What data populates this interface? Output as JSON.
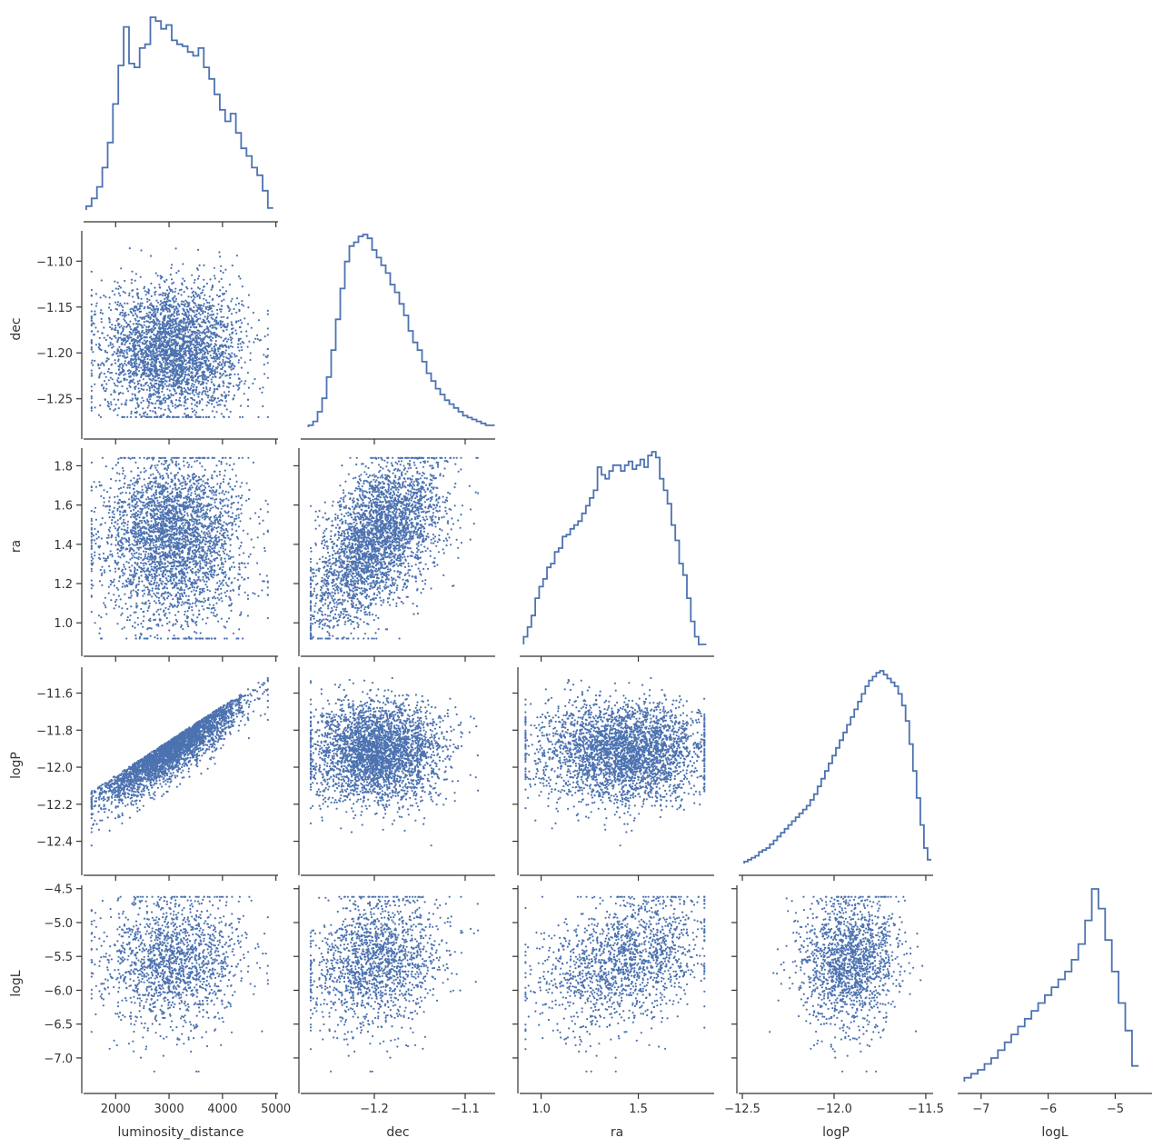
{
  "chart_data": {
    "type": "pairplot",
    "variables": [
      {
        "key": "luminosity_distance",
        "label": "luminosity_distance",
        "range": [
          1400,
          5040
        ],
        "ticks": [
          2000,
          3000,
          4000,
          5000
        ],
        "tick_labels": [
          "2000",
          "3000",
          "4000",
          "5000"
        ]
      },
      {
        "key": "dec",
        "label": "dec",
        "range": [
          -1.281,
          -1.067
        ],
        "ticks": [
          -1.25,
          -1.2,
          -1.15,
          -1.1
        ],
        "tick_labels": [
          "−1.25",
          "−1.20",
          "−1.15",
          "−1.10"
        ],
        "x_ticks": [
          -1.2,
          -1.1
        ],
        "x_tick_labels": [
          "−1.2",
          "−1.1"
        ]
      },
      {
        "key": "ra",
        "label": "ra",
        "range": [
          0.89,
          1.89
        ],
        "ticks": [
          1.0,
          1.2,
          1.4,
          1.6,
          1.8
        ],
        "tick_labels": [
          "1.0",
          "1.2",
          "1.4",
          "1.6",
          "1.8"
        ],
        "x_ticks": [
          1.0,
          1.5
        ],
        "x_tick_labels": [
          "1.0",
          "1.5"
        ]
      },
      {
        "key": "logP",
        "label": "logP",
        "range": [
          -12.52,
          -11.46
        ],
        "ticks": [
          -12.4,
          -12.2,
          -12.0,
          -11.8,
          -11.6
        ],
        "tick_labels": [
          "−12.4",
          "−12.2",
          "−12.0",
          "−11.8",
          "−11.6"
        ],
        "x_ticks": [
          -12.5,
          -12.0,
          -11.5
        ],
        "x_tick_labels": [
          "−12.5",
          "−12.0",
          "−11.5"
        ]
      },
      {
        "key": "logL",
        "label": "logL",
        "range": [
          -7.35,
          -4.45
        ],
        "ticks": [
          -7.0,
          -6.5,
          -6.0,
          -5.5,
          -5.0,
          -4.5
        ],
        "tick_labels": [
          "−7.0",
          "−6.5",
          "−6.0",
          "−5.5",
          "−5.0",
          "−4.5"
        ],
        "x_ticks": [
          -7,
          -6,
          -5
        ],
        "x_tick_labels": [
          "−7",
          "−6",
          "−5"
        ]
      }
    ],
    "marginals": {
      "luminosity_distance": {
        "x": [
          1500,
          1600,
          1700,
          1800,
          1900,
          2000,
          2100,
          2200,
          2300,
          2400,
          2500,
          2600,
          2700,
          2800,
          2900,
          3000,
          3100,
          3200,
          3300,
          3400,
          3500,
          3600,
          3700,
          3800,
          3900,
          4000,
          4100,
          4200,
          4300,
          4400,
          4500,
          4600,
          4700,
          4800,
          4900
        ],
        "density": [
          2,
          6,
          12,
          22,
          35,
          55,
          75,
          95,
          76,
          74,
          84,
          86,
          100,
          98,
          94,
          96,
          88,
          86,
          85,
          82,
          80,
          84,
          74,
          68,
          60,
          52,
          46,
          50,
          40,
          32,
          28,
          22,
          18,
          10,
          1
        ]
      },
      "dec": {
        "x": [
          -1.27,
          -1.265,
          -1.26,
          -1.255,
          -1.25,
          -1.245,
          -1.24,
          -1.235,
          -1.23,
          -1.225,
          -1.22,
          -1.215,
          -1.21,
          -1.205,
          -1.2,
          -1.195,
          -1.19,
          -1.185,
          -1.18,
          -1.175,
          -1.17,
          -1.165,
          -1.16,
          -1.155,
          -1.15,
          -1.145,
          -1.14,
          -1.135,
          -1.13,
          -1.125,
          -1.12,
          -1.115,
          -1.11,
          -1.105,
          -1.1,
          -1.095,
          -1.09,
          -1.085,
          -1.08,
          -1.075,
          -1.07
        ],
        "density": [
          1,
          3,
          8,
          15,
          26,
          40,
          56,
          72,
          86,
          94,
          96,
          99,
          100,
          98,
          92,
          88,
          84,
          80,
          74,
          70,
          64,
          58,
          50,
          44,
          40,
          34,
          28,
          24,
          20,
          17,
          14,
          12,
          10,
          8,
          6,
          5,
          4,
          3,
          2,
          1,
          1
        ]
      },
      "ra": {
        "x": [
          0.92,
          0.94,
          0.96,
          0.98,
          1.0,
          1.02,
          1.04,
          1.06,
          1.08,
          1.1,
          1.12,
          1.14,
          1.16,
          1.18,
          1.2,
          1.22,
          1.24,
          1.26,
          1.28,
          1.3,
          1.32,
          1.34,
          1.36,
          1.38,
          1.4,
          1.42,
          1.44,
          1.46,
          1.48,
          1.5,
          1.52,
          1.54,
          1.56,
          1.58,
          1.6,
          1.62,
          1.64,
          1.66,
          1.68,
          1.7,
          1.72,
          1.74,
          1.76,
          1.78,
          1.8,
          1.82,
          1.84
        ],
        "density": [
          4,
          9,
          15,
          24,
          30,
          34,
          40,
          42,
          48,
          50,
          56,
          57,
          60,
          62,
          64,
          68,
          72,
          76,
          80,
          92,
          88,
          86,
          90,
          93,
          93,
          90,
          93,
          95,
          91,
          93,
          96,
          92,
          98,
          100,
          97,
          86,
          80,
          73,
          62,
          54,
          42,
          36,
          24,
          12,
          4,
          0,
          0
        ]
      },
      "logP": {
        "x": [
          -12.48,
          -12.46,
          -12.44,
          -12.42,
          -12.4,
          -12.38,
          -12.36,
          -12.34,
          -12.32,
          -12.3,
          -12.28,
          -12.26,
          -12.24,
          -12.22,
          -12.2,
          -12.18,
          -12.16,
          -12.14,
          -12.12,
          -12.1,
          -12.08,
          -12.06,
          -12.04,
          -12.02,
          -12.0,
          -11.98,
          -11.96,
          -11.94,
          -11.92,
          -11.9,
          -11.88,
          -11.86,
          -11.84,
          -11.82,
          -11.8,
          -11.78,
          -11.76,
          -11.74,
          -11.72,
          -11.7,
          -11.68,
          -11.66,
          -11.64,
          -11.62,
          -11.6,
          -11.58,
          -11.56,
          -11.54,
          -11.52,
          -11.5,
          -11.48
        ],
        "density": [
          1,
          2,
          3,
          4,
          6,
          7,
          8,
          10,
          12,
          14,
          16,
          18,
          20,
          22,
          24,
          26,
          28,
          30,
          33,
          36,
          40,
          44,
          48,
          52,
          56,
          60,
          64,
          68,
          72,
          76,
          80,
          84,
          88,
          92,
          95,
          97,
          99,
          100,
          98,
          96,
          94,
          92,
          88,
          82,
          74,
          62,
          48,
          34,
          20,
          8,
          2
        ]
      },
      "logL": {
        "x": [
          -7.2,
          -7.1,
          -7.0,
          -6.9,
          -6.8,
          -6.7,
          -6.6,
          -6.5,
          -6.4,
          -6.3,
          -6.2,
          -6.1,
          -6.0,
          -5.9,
          -5.8,
          -5.7,
          -5.6,
          -5.5,
          -5.4,
          -5.3,
          -5.2,
          -5.1,
          -5.0,
          -4.9,
          -4.8,
          -4.7
        ],
        "density": [
          2,
          4,
          6,
          9,
          12,
          16,
          20,
          24,
          28,
          32,
          36,
          40,
          44,
          48,
          52,
          56,
          62,
          70,
          82,
          98,
          88,
          72,
          56,
          40,
          26,
          8
        ]
      }
    },
    "scatter_panels": [
      {
        "x": "luminosity_distance",
        "y": "dec"
      },
      {
        "x": "luminosity_distance",
        "y": "ra"
      },
      {
        "x": "dec",
        "y": "ra"
      },
      {
        "x": "luminosity_distance",
        "y": "logP"
      },
      {
        "x": "dec",
        "y": "logP"
      },
      {
        "x": "ra",
        "y": "logP"
      },
      {
        "x": "luminosity_distance",
        "y": "logL"
      },
      {
        "x": "dec",
        "y": "logL"
      },
      {
        "x": "ra",
        "y": "logL"
      },
      {
        "x": "logP",
        "y": "logL"
      }
    ],
    "colors": {
      "series": "#4c72b0",
      "axis": "#333333"
    },
    "grid": false,
    "layout": "lower-triangular corner plot"
  }
}
